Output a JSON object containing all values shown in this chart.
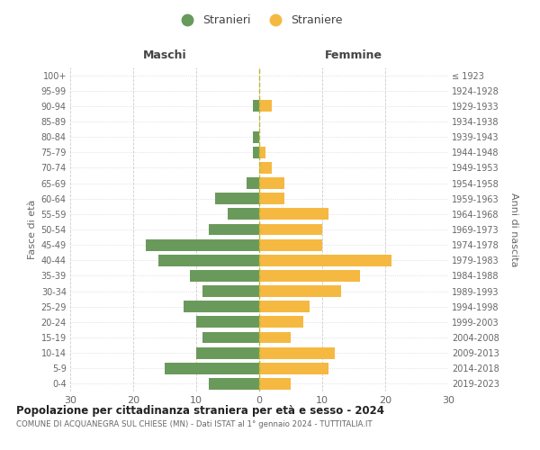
{
  "age_groups": [
    "0-4",
    "5-9",
    "10-14",
    "15-19",
    "20-24",
    "25-29",
    "30-34",
    "35-39",
    "40-44",
    "45-49",
    "50-54",
    "55-59",
    "60-64",
    "65-69",
    "70-74",
    "75-79",
    "80-84",
    "85-89",
    "90-94",
    "95-99",
    "100+"
  ],
  "birth_years": [
    "2019-2023",
    "2014-2018",
    "2009-2013",
    "2004-2008",
    "1999-2003",
    "1994-1998",
    "1989-1993",
    "1984-1988",
    "1979-1983",
    "1974-1978",
    "1969-1973",
    "1964-1968",
    "1959-1963",
    "1954-1958",
    "1949-1953",
    "1944-1948",
    "1939-1943",
    "1934-1938",
    "1929-1933",
    "1924-1928",
    "≤ 1923"
  ],
  "maschi": [
    8,
    15,
    10,
    9,
    10,
    12,
    9,
    11,
    16,
    18,
    8,
    5,
    7,
    2,
    0,
    1,
    1,
    0,
    1,
    0,
    0
  ],
  "femmine": [
    5,
    11,
    12,
    5,
    7,
    8,
    13,
    16,
    21,
    10,
    10,
    11,
    4,
    4,
    2,
    1,
    0,
    0,
    2,
    0,
    0
  ],
  "male_color": "#6a9a5b",
  "female_color": "#f5b942",
  "dashed_line_color": "#b8b830",
  "title_main": "Popolazione per cittadinanza straniera per età e sesso - 2024",
  "title_sub": "COMUNE DI ACQUANEGRA SUL CHIESE (MN) - Dati ISTAT al 1° gennaio 2024 - TUTTITALIA.IT",
  "xlabel_left": "Maschi",
  "xlabel_right": "Femmine",
  "ylabel_left": "Fasce di età",
  "ylabel_right": "Anni di nascita",
  "legend_male": "Stranieri",
  "legend_female": "Straniere",
  "xlim": 30,
  "background_color": "#ffffff",
  "grid_color": "#cccccc"
}
